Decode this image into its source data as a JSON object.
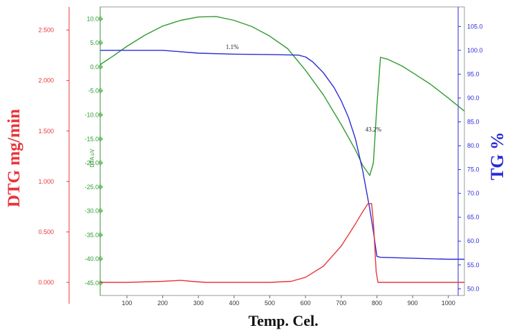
{
  "chart_data": {
    "type": "line",
    "xlabel": "Temp. Cel.",
    "xlim": [
      25,
      1045
    ],
    "x_ticks": [
      "100",
      "200",
      "300",
      "400",
      "500",
      "600",
      "700",
      "800",
      "900",
      "1000"
    ],
    "axes": {
      "dtg": {
        "label": "DTG mg/min",
        "ylim": [
          -0.13,
          2.73
        ],
        "ticks": [
          "0.000",
          "0.500",
          "1.000",
          "1.500",
          "2.000",
          "2.500"
        ],
        "color": "#e8353a"
      },
      "dta": {
        "label": "DTA uV",
        "ylim": [
          -47.6,
          12.5
        ],
        "ticks": [
          "10.00",
          "5.00",
          "0.00",
          "-5.00",
          "-10.00",
          "-15.00",
          "-20.00",
          "-25.00",
          "-30.00",
          "-35.00",
          "-40.00",
          "-45.00"
        ],
        "color": "#2e9a2e"
      },
      "tg": {
        "label": "TG %",
        "ylim": [
          48.6,
          109.1
        ],
        "ticks": [
          "105.0",
          "100.0",
          "95.0",
          "90.0",
          "85.0",
          "80.0",
          "75.0",
          "70.0",
          "65.0",
          "60.0",
          "55.0",
          "50.0"
        ],
        "color": "#2a2ad8"
      }
    },
    "series": [
      {
        "name": "DTA",
        "axis": "dta",
        "color": "#2e9a2e",
        "x": [
          25,
          60,
          100,
          150,
          200,
          250,
          300,
          350,
          400,
          450,
          500,
          550,
          600,
          650,
          700,
          740,
          760,
          780,
          790,
          800,
          810,
          830,
          870,
          900,
          950,
          1000,
          1045
        ],
        "y": [
          0.5,
          2.2,
          4.3,
          6.6,
          8.5,
          9.7,
          10.4,
          10.5,
          9.7,
          8.4,
          6.4,
          3.8,
          -0.7,
          -5.8,
          -12.0,
          -17.3,
          -20.5,
          -22.6,
          -20.0,
          -8.0,
          2.0,
          1.6,
          0.2,
          -1.2,
          -3.6,
          -6.5,
          -9.2
        ]
      },
      {
        "name": "TG",
        "axis": "tg",
        "color": "#2a2ad8",
        "x": [
          25,
          100,
          200,
          250,
          300,
          400,
          500,
          580,
          600,
          620,
          650,
          680,
          700,
          720,
          740,
          760,
          780,
          790,
          800,
          810,
          900,
          1000,
          1045
        ],
        "y": [
          100.0,
          100.0,
          100.0,
          99.7,
          99.4,
          99.2,
          99.1,
          99.0,
          98.6,
          97.6,
          95.3,
          92.2,
          89.4,
          86.0,
          81.4,
          74.8,
          66.7,
          62.0,
          56.8,
          56.6,
          56.4,
          56.2,
          56.2
        ]
      },
      {
        "name": "DTG",
        "axis": "dtg",
        "color": "#e8353a",
        "x": [
          25,
          100,
          200,
          250,
          280,
          320,
          400,
          500,
          560,
          600,
          650,
          700,
          740,
          760,
          775,
          785,
          790,
          798,
          803,
          820,
          900,
          1000,
          1045
        ],
        "y": [
          0.0,
          0.0,
          0.01,
          0.02,
          0.01,
          0.0,
          0.0,
          0.0,
          0.01,
          0.05,
          0.16,
          0.36,
          0.58,
          0.7,
          0.78,
          0.78,
          0.6,
          0.1,
          0.0,
          0.0,
          0.0,
          0.0,
          0.0
        ]
      }
    ],
    "annotations": [
      {
        "text": "1.1%",
        "x": 395,
        "y_tg": 100.3
      },
      {
        "text": "43.2%",
        "x": 790,
        "y_tg": 83.0
      }
    ]
  }
}
